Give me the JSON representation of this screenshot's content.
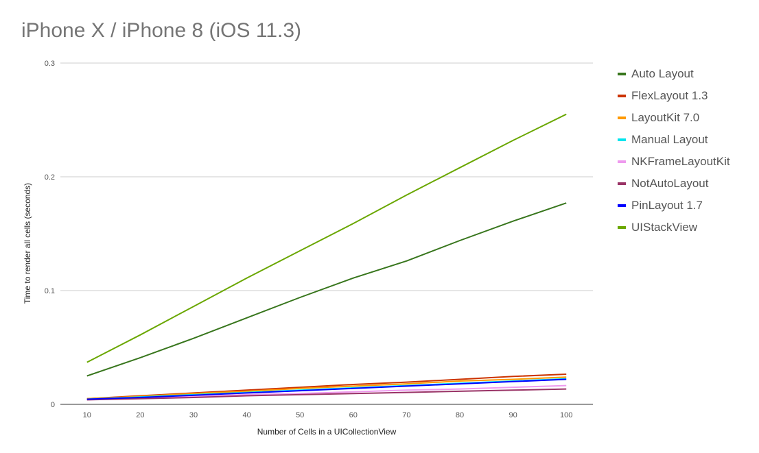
{
  "chart_data": {
    "type": "line",
    "title": "iPhone X / iPhone 8 (iOS 11.3)",
    "xlabel": "Number of Cells in a UICollectionView",
    "ylabel": "Time to  render  all cells (seconds)",
    "x": [
      10,
      20,
      30,
      40,
      50,
      60,
      70,
      80,
      90,
      100
    ],
    "xlim": [
      5,
      105
    ],
    "ylim": [
      0,
      0.3
    ],
    "y_ticks": [
      0,
      0.1,
      0.2,
      0.3
    ],
    "y_tick_labels": [
      "0",
      "0.1",
      "0.2",
      "0.3"
    ],
    "x_tick_labels": [
      "10",
      "20",
      "30",
      "40",
      "50",
      "60",
      "70",
      "80",
      "90",
      "100"
    ],
    "grid": true,
    "legend_position": "right",
    "series": [
      {
        "name": "Auto Layout",
        "color": "#38761d",
        "values": [
          0.025,
          0.041,
          0.058,
          0.076,
          0.094,
          0.111,
          0.126,
          0.144,
          0.161,
          0.177
        ]
      },
      {
        "name": "FlexLayout 1.3",
        "color": "#cc3300",
        "values": [
          0.005,
          0.0075,
          0.01,
          0.0125,
          0.015,
          0.0175,
          0.0195,
          0.022,
          0.0245,
          0.0265
        ]
      },
      {
        "name": "LayoutKit 7.0",
        "color": "#ff9900",
        "values": [
          0.005,
          0.007,
          0.0095,
          0.0115,
          0.014,
          0.016,
          0.018,
          0.0205,
          0.022,
          0.024
        ]
      },
      {
        "name": "Manual Layout",
        "color": "#00e5ee",
        "values": [
          0.0045,
          0.0065,
          0.0085,
          0.0105,
          0.0125,
          0.0145,
          0.0165,
          0.0185,
          0.0205,
          0.0225
        ]
      },
      {
        "name": "NKFrameLayoutKit",
        "color": "#ee99ee",
        "values": [
          0.004,
          0.0055,
          0.007,
          0.0085,
          0.0095,
          0.011,
          0.0125,
          0.0135,
          0.015,
          0.0165
        ]
      },
      {
        "name": "NotAutoLayout",
        "color": "#993366",
        "values": [
          0.004,
          0.005,
          0.006,
          0.0075,
          0.0085,
          0.0095,
          0.0105,
          0.0115,
          0.0125,
          0.0135
        ]
      },
      {
        "name": "PinLayout 1.7",
        "color": "#0000ff",
        "values": [
          0.0045,
          0.006,
          0.008,
          0.01,
          0.012,
          0.014,
          0.016,
          0.018,
          0.02,
          0.022
        ]
      },
      {
        "name": "UIStackView",
        "color": "#6aa700",
        "values": [
          0.037,
          0.061,
          0.086,
          0.111,
          0.135,
          0.159,
          0.184,
          0.208,
          0.232,
          0.255
        ]
      }
    ]
  }
}
